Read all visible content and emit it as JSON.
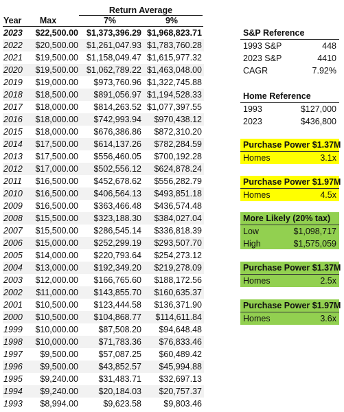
{
  "table": {
    "group_header": "Return Average",
    "headers": [
      "Year",
      "Max",
      "7%",
      "9%"
    ],
    "rows": [
      [
        "2023",
        "$22,500.00",
        "$1,373,396.29",
        "$1,968,823.71"
      ],
      [
        "2022",
        "$20,500.00",
        "$1,261,047.93",
        "$1,783,760.28"
      ],
      [
        "2021",
        "$19,500.00",
        "$1,158,049.47",
        "$1,615,977.32"
      ],
      [
        "2020",
        "$19,500.00",
        "$1,062,789.22",
        "$1,463,048.00"
      ],
      [
        "2019",
        "$19,000.00",
        "$973,760.96",
        "$1,322,745.88"
      ],
      [
        "2018",
        "$18,500.00",
        "$891,056.97",
        "$1,194,528.33"
      ],
      [
        "2017",
        "$18,000.00",
        "$814,263.52",
        "$1,077,397.55"
      ],
      [
        "2016",
        "$18,000.00",
        "$742,993.94",
        "$970,438.12"
      ],
      [
        "2015",
        "$18,000.00",
        "$676,386.86",
        "$872,310.20"
      ],
      [
        "2014",
        "$17,500.00",
        "$614,137.26",
        "$782,284.59"
      ],
      [
        "2013",
        "$17,500.00",
        "$556,460.05",
        "$700,192.28"
      ],
      [
        "2012",
        "$17,000.00",
        "$502,556.12",
        "$624,878.24"
      ],
      [
        "2011",
        "$16,500.00",
        "$452,678.62",
        "$556,282.79"
      ],
      [
        "2010",
        "$16,500.00",
        "$406,564.13",
        "$493,851.18"
      ],
      [
        "2009",
        "$16,500.00",
        "$363,466.48",
        "$436,574.48"
      ],
      [
        "2008",
        "$15,500.00",
        "$323,188.30",
        "$384,027.04"
      ],
      [
        "2007",
        "$15,500.00",
        "$286,545.14",
        "$336,818.39"
      ],
      [
        "2006",
        "$15,000.00",
        "$252,299.19",
        "$293,507.70"
      ],
      [
        "2005",
        "$14,000.00",
        "$220,793.64",
        "$254,273.12"
      ],
      [
        "2004",
        "$13,000.00",
        "$192,349.20",
        "$219,278.09"
      ],
      [
        "2003",
        "$12,000.00",
        "$166,765.60",
        "$188,172.56"
      ],
      [
        "2002",
        "$11,000.00",
        "$143,855.70",
        "$160,635.37"
      ],
      [
        "2001",
        "$10,500.00",
        "$123,444.58",
        "$136,371.90"
      ],
      [
        "2000",
        "$10,500.00",
        "$104,868.77",
        "$114,611.84"
      ],
      [
        "1999",
        "$10,000.00",
        "$87,508.20",
        "$94,648.48"
      ],
      [
        "1998",
        "$10,000.00",
        "$71,783.36",
        "$76,833.46"
      ],
      [
        "1997",
        "$9,500.00",
        "$57,087.25",
        "$60,489.42"
      ],
      [
        "1996",
        "$9,500.00",
        "$43,852.57",
        "$45,994.88"
      ],
      [
        "1995",
        "$9,240.00",
        "$31,483.71",
        "$32,697.13"
      ],
      [
        "1994",
        "$9,240.00",
        "$20,184.03",
        "$20,757.37"
      ],
      [
        "1993",
        "$8,994.00",
        "$9,623.58",
        "$9,803.46"
      ]
    ]
  },
  "sp_reference": {
    "title": "S&P Reference",
    "rows": [
      [
        "1993 S&P",
        "448"
      ],
      [
        "2023 S&P",
        "4410"
      ],
      [
        "CAGR",
        "7.92%"
      ]
    ]
  },
  "home_reference": {
    "title": "Home Reference",
    "rows": [
      [
        "1993",
        "$127,000"
      ],
      [
        "2023",
        "$436,800"
      ]
    ]
  },
  "purchase_power": [
    {
      "title": "Purchase Power $1.37M",
      "label": "Homes",
      "value": "3.1x"
    },
    {
      "title": "Purchase Power $1.97M",
      "label": "Homes",
      "value": "4.5x"
    }
  ],
  "more_likely": {
    "title": "More Likely (20% tax)",
    "rows": [
      [
        "Low",
        "$1,098,717"
      ],
      [
        "High",
        "$1,575,059"
      ]
    ],
    "purchase_power": [
      {
        "title": "Purchase Power $1.37M",
        "label": "Homes",
        "value": "2.5x"
      },
      {
        "title": "Purchase Power $1.97M",
        "label": "Homes",
        "value": "3.6x"
      }
    ]
  }
}
